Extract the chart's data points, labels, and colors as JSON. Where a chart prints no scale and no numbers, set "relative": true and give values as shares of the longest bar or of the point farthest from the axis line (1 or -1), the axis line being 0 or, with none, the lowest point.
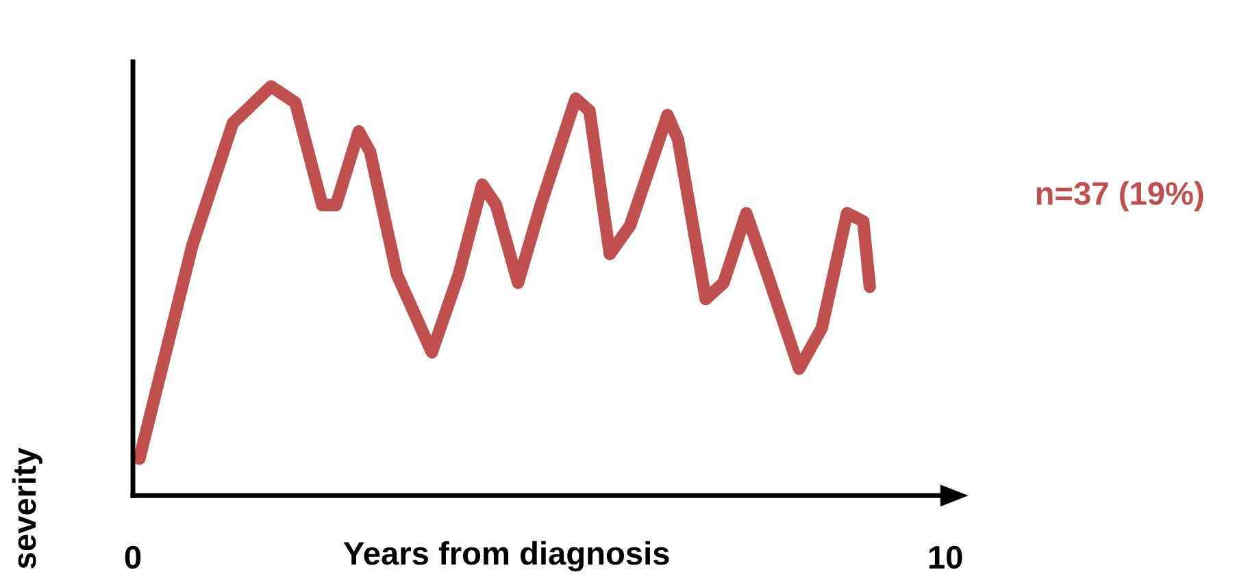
{
  "chart_data": {
    "type": "line",
    "xlabel": "Years from diagnosis",
    "ylabel": "severity",
    "relative": true,
    "xlim": [
      0,
      10
    ],
    "xticks": [
      0,
      10
    ],
    "grid": false,
    "legend": false,
    "marker": "none",
    "line_style": "solid",
    "annotations": [
      "n=37 (19%)"
    ],
    "series": [
      {
        "color": "#c0504d",
        "x": [
          0.08,
          0.73,
          1.23,
          1.7,
          2.0,
          2.33,
          2.5,
          2.78,
          2.92,
          3.25,
          3.68,
          4.01,
          4.3,
          4.47,
          4.74,
          5.02,
          5.45,
          5.62,
          5.87,
          6.12,
          6.58,
          6.71,
          7.05,
          7.27,
          7.55,
          7.81,
          8.2,
          8.48,
          8.79,
          8.99,
          9.07
        ],
        "values": [
          0.09,
          0.61,
          0.91,
          1.0,
          0.96,
          0.71,
          0.71,
          0.89,
          0.84,
          0.54,
          0.35,
          0.54,
          0.76,
          0.71,
          0.52,
          0.71,
          0.97,
          0.94,
          0.59,
          0.66,
          0.93,
          0.87,
          0.48,
          0.52,
          0.69,
          0.54,
          0.31,
          0.41,
          0.69,
          0.67,
          0.51
        ]
      }
    ]
  }
}
